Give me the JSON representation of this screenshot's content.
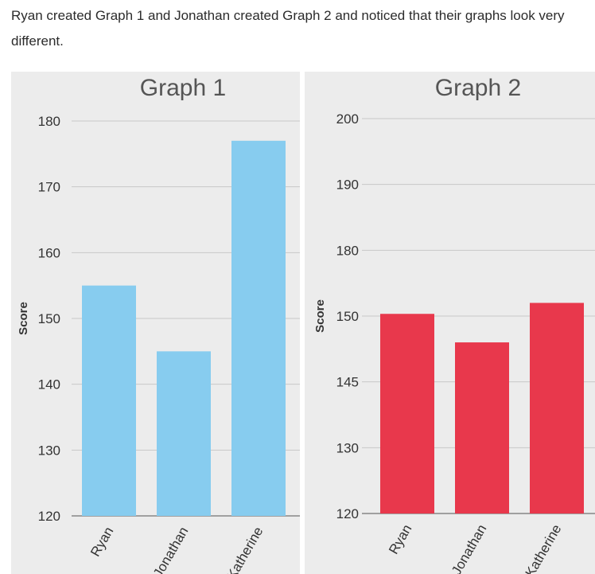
{
  "intro_text": "Ryan created Graph 1 and Jonathan created Graph 2 and noticed that their graphs look very different.",
  "chart_data": [
    {
      "type": "bar",
      "title": "Graph 1",
      "ylabel": "Score",
      "categories": [
        "Ryan",
        "Jonathan",
        "Katherine"
      ],
      "values": [
        155,
        145,
        177
      ],
      "ylim": [
        120,
        180
      ],
      "yticks": [
        "120",
        "130",
        "140",
        "150",
        "160",
        "170",
        "180"
      ],
      "bar_color": "#87ccef",
      "grid": true
    },
    {
      "type": "bar",
      "title": "Graph 2",
      "ylabel": "Score",
      "categories": [
        "Ryan",
        "Jonathan",
        "Katherine"
      ],
      "values": [
        151,
        148,
        156
      ],
      "yticks": [
        "120",
        "130",
        "145",
        "150",
        "180",
        "190",
        "200"
      ],
      "bar_color": "#e8384c",
      "grid": true
    }
  ]
}
